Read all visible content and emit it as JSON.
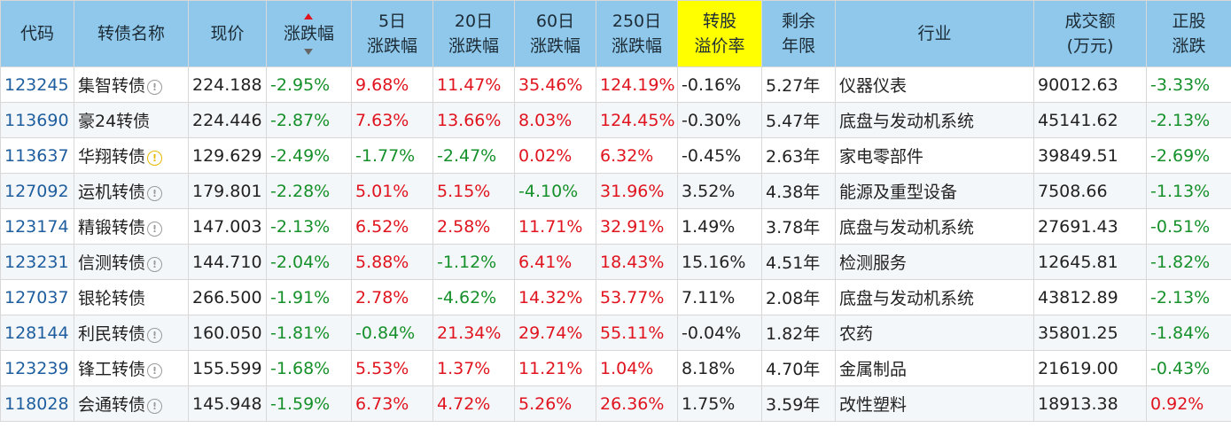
{
  "columns": [
    {
      "key": "code",
      "lines": [
        "代码"
      ]
    },
    {
      "key": "name",
      "lines": [
        "转债名称"
      ]
    },
    {
      "key": "price",
      "lines": [
        "现价"
      ]
    },
    {
      "key": "change",
      "lines": [
        "涨跌幅"
      ]
    },
    {
      "key": "chg5",
      "lines": [
        "5日",
        "涨跌幅"
      ]
    },
    {
      "key": "chg20",
      "lines": [
        "20日",
        "涨跌幅"
      ]
    },
    {
      "key": "chg60",
      "lines": [
        "60日",
        "涨跌幅"
      ]
    },
    {
      "key": "chg250",
      "lines": [
        "250日",
        "涨跌幅"
      ]
    },
    {
      "key": "premium",
      "lines": [
        "转股",
        "溢价率"
      ]
    },
    {
      "key": "years",
      "lines": [
        "剩余",
        "年限"
      ]
    },
    {
      "key": "industry",
      "lines": [
        "行业"
      ]
    },
    {
      "key": "volume",
      "lines": [
        "成交额",
        "(万元)"
      ]
    },
    {
      "key": "stock_chg",
      "lines": [
        "正股",
        "涨跌"
      ]
    }
  ],
  "sorted_column": "change",
  "highlight_column": "premium",
  "icons": {
    "info": "info-circle-icon",
    "warning": "warning-circle-icon",
    "sort_up": "sort-up-icon",
    "sort_down": "sort-down-icon"
  },
  "colors": {
    "header_bg": "#8fc8ea",
    "highlight_bg": "#ffff00",
    "up": "#e0141e",
    "down": "#16902a",
    "code": "#1f5e9e"
  },
  "rows": [
    {
      "code": "123245",
      "name": "集智转债",
      "icon": "info",
      "price": "224.188",
      "change": "-2.95%",
      "chg5": "9.68%",
      "chg20": "11.47%",
      "chg60": "35.46%",
      "chg250": "124.19%",
      "premium": "-0.16%",
      "years": "5.27年",
      "industry": "仪器仪表",
      "volume": "90012.63",
      "stock_chg": "-3.33%"
    },
    {
      "code": "113690",
      "name": "豪24转债",
      "icon": "",
      "price": "224.446",
      "change": "-2.87%",
      "chg5": "7.63%",
      "chg20": "13.66%",
      "chg60": "8.03%",
      "chg250": "124.45%",
      "premium": "-0.30%",
      "years": "5.47年",
      "industry": "底盘与发动机系统",
      "volume": "45141.62",
      "stock_chg": "-2.13%"
    },
    {
      "code": "113637",
      "name": "华翔转债",
      "icon": "warning",
      "price": "129.629",
      "change": "-2.49%",
      "chg5": "-1.77%",
      "chg20": "-2.47%",
      "chg60": "0.02%",
      "chg250": "6.32%",
      "premium": "-0.45%",
      "years": "2.63年",
      "industry": "家电零部件",
      "volume": "39849.51",
      "stock_chg": "-2.69%"
    },
    {
      "code": "127092",
      "name": "运机转债",
      "icon": "info",
      "price": "179.801",
      "change": "-2.28%",
      "chg5": "5.01%",
      "chg20": "5.15%",
      "chg60": "-4.10%",
      "chg250": "31.96%",
      "premium": "3.52%",
      "years": "4.38年",
      "industry": "能源及重型设备",
      "volume": "7508.66",
      "stock_chg": "-1.13%"
    },
    {
      "code": "123174",
      "name": "精锻转债",
      "icon": "info",
      "price": "147.003",
      "change": "-2.13%",
      "chg5": "6.52%",
      "chg20": "2.58%",
      "chg60": "11.71%",
      "chg250": "32.91%",
      "premium": "1.49%",
      "years": "3.78年",
      "industry": "底盘与发动机系统",
      "volume": "27691.43",
      "stock_chg": "-0.51%"
    },
    {
      "code": "123231",
      "name": "信测转债",
      "icon": "info",
      "price": "144.710",
      "change": "-2.04%",
      "chg5": "5.88%",
      "chg20": "-1.12%",
      "chg60": "6.41%",
      "chg250": "18.43%",
      "premium": "15.16%",
      "years": "4.51年",
      "industry": "检测服务",
      "volume": "12645.81",
      "stock_chg": "-1.82%"
    },
    {
      "code": "127037",
      "name": "银轮转债",
      "icon": "",
      "price": "266.500",
      "change": "-1.91%",
      "chg5": "2.78%",
      "chg20": "-4.62%",
      "chg60": "14.32%",
      "chg250": "53.77%",
      "premium": "7.11%",
      "years": "2.08年",
      "industry": "底盘与发动机系统",
      "volume": "43812.89",
      "stock_chg": "-2.13%"
    },
    {
      "code": "128144",
      "name": "利民转债",
      "icon": "info",
      "price": "160.050",
      "change": "-1.81%",
      "chg5": "-0.84%",
      "chg20": "21.34%",
      "chg60": "29.74%",
      "chg250": "55.11%",
      "premium": "-0.04%",
      "years": "1.82年",
      "industry": "农药",
      "volume": "35801.25",
      "stock_chg": "-1.84%"
    },
    {
      "code": "123239",
      "name": "锋工转债",
      "icon": "info",
      "price": "155.599",
      "change": "-1.68%",
      "chg5": "5.53%",
      "chg20": "1.37%",
      "chg60": "11.21%",
      "chg250": "1.04%",
      "premium": "8.18%",
      "years": "4.70年",
      "industry": "金属制品",
      "volume": "21619.00",
      "stock_chg": "-0.43%"
    },
    {
      "code": "118028",
      "name": "会通转债",
      "icon": "info",
      "price": "145.948",
      "change": "-1.59%",
      "chg5": "6.73%",
      "chg20": "4.72%",
      "chg60": "5.26%",
      "chg250": "26.36%",
      "premium": "1.75%",
      "years": "3.59年",
      "industry": "改性塑料",
      "volume": "18913.38",
      "stock_chg": "0.92%"
    }
  ]
}
